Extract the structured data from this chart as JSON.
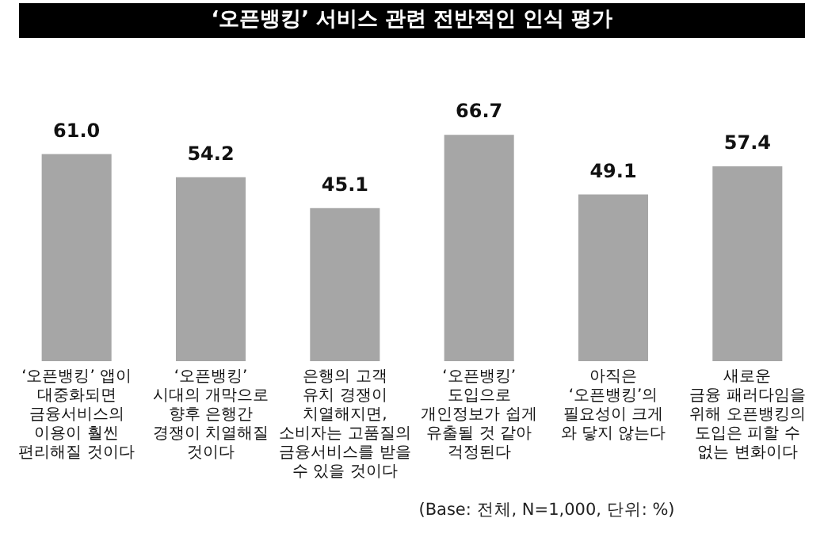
{
  "chart_data": {
    "type": "bar",
    "title": "‘오픈뱅킹’ 서비스 관련 전반적인 인식 평가",
    "categories": [
      "‘오픈뱅킹’ 앱이\n대중화되면\n금융서비스의\n이용이 훨씬\n편리해질 것이다",
      "‘오픈뱅킹’\n시대의 개막으로\n향후 은행간\n경쟁이 치열해질\n것이다",
      "은행의 고객\n유치 경쟁이\n치열해지면,\n소비자는 고품질의\n금융서비스를 받을\n수 있을 것이다",
      "‘오픈뱅킹’\n도입으로\n개인정보가 쉽게\n유출될 것 같아\n걱정된다",
      "아직은\n‘오픈뱅킹’의\n필요성이 크게\n와 닿지 않는다",
      "새로운\n금융 패러다임을\n위해 오픈뱅킹의\n도입은 피할 수\n없는 변화이다"
    ],
    "values": [
      61.0,
      54.2,
      45.1,
      66.7,
      49.1,
      57.4
    ],
    "value_labels": [
      "61.0",
      "54.2",
      "45.1",
      "66.7",
      "49.1",
      "57.4"
    ],
    "color": "#a6a6a6",
    "tick_labels": "x",
    "grid": false,
    "legend": false,
    "annotations": [
      "(Base: 전체, N=1,000, 단위: %)"
    ]
  }
}
